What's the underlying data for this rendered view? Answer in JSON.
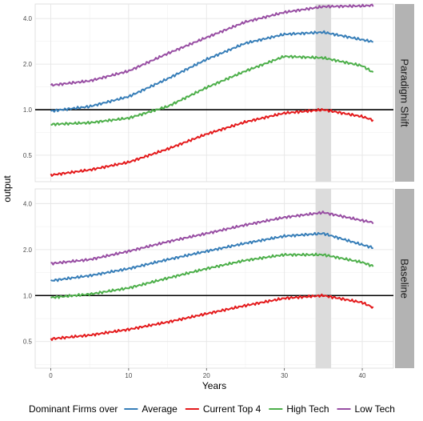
{
  "chart_data": {
    "type": "line",
    "xlabel": "Years",
    "ylabel": "output",
    "xlim": [
      -2,
      44
    ],
    "ylim_log2": [
      -1.58,
      2.32
    ],
    "y_scale": "log2",
    "x_ticks": [
      0,
      10,
      20,
      30,
      40
    ],
    "y_ticks": [
      0.5,
      1.0,
      2.0,
      4.0
    ],
    "y_tick_labels": [
      "0.5",
      "1.0",
      "2.0",
      "4.0"
    ],
    "reference_line_y": 1.0,
    "shaded_band_x": [
      34,
      36
    ],
    "legend": {
      "title": "Dominant Firms over",
      "position": "bottom"
    },
    "colors": {
      "Average": "#377eb8",
      "Current Top 4": "#e41a1c",
      "High Tech": "#4daf4a",
      "Low Tech": "#984ea3"
    },
    "series_names": [
      "Average",
      "Current Top 4",
      "High Tech",
      "Low Tech"
    ],
    "panels": [
      {
        "label": "Paradigm Shift",
        "x": [
          0,
          5,
          10,
          15,
          20,
          25,
          30,
          35,
          40,
          41.5
        ],
        "series": [
          {
            "name": "Average",
            "values": [
              0.98,
              1.05,
              1.22,
              1.6,
              2.15,
              2.75,
              3.15,
              3.25,
              2.9,
              2.8
            ]
          },
          {
            "name": "Current Top 4",
            "values": [
              0.37,
              0.4,
              0.45,
              0.55,
              0.69,
              0.83,
              0.95,
              1.0,
              0.9,
              0.85
            ]
          },
          {
            "name": "High Tech",
            "values": [
              0.8,
              0.82,
              0.88,
              1.05,
              1.4,
              1.8,
              2.25,
              2.2,
              1.95,
              1.75
            ]
          },
          {
            "name": "Low Tech",
            "values": [
              1.45,
              1.55,
              1.8,
              2.35,
              3.0,
              3.8,
              4.4,
              4.8,
              4.85,
              4.9
            ]
          }
        ]
      },
      {
        "label": "Baseline",
        "x": [
          0,
          5,
          10,
          15,
          20,
          25,
          30,
          35,
          40,
          41.5
        ],
        "series": [
          {
            "name": "Average",
            "values": [
              1.25,
              1.35,
              1.5,
              1.72,
              1.95,
              2.2,
              2.45,
              2.55,
              2.15,
              2.05
            ]
          },
          {
            "name": "Current Top 4",
            "values": [
              0.52,
              0.55,
              0.6,
              0.67,
              0.76,
              0.86,
              0.96,
              1.0,
              0.9,
              0.83
            ]
          },
          {
            "name": "High Tech",
            "values": [
              0.97,
              1.02,
              1.12,
              1.3,
              1.5,
              1.7,
              1.85,
              1.85,
              1.65,
              1.55
            ]
          },
          {
            "name": "Low Tech",
            "values": [
              1.62,
              1.72,
              1.95,
              2.25,
              2.55,
              2.9,
              3.25,
              3.5,
              3.1,
              3.0
            ]
          }
        ]
      }
    ]
  }
}
